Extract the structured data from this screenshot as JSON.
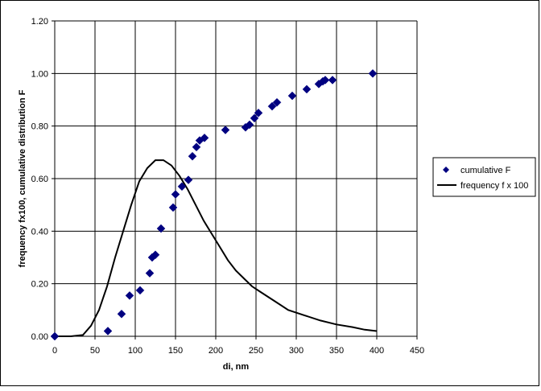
{
  "chart_data": {
    "type": "scatter",
    "title": "",
    "xlabel": "di, nm",
    "ylabel": "frequency fx100, cumulative distribution F",
    "xlim": [
      0,
      450
    ],
    "ylim": [
      0,
      1.2
    ],
    "x_ticks": [
      "0",
      "50",
      "100",
      "150",
      "200",
      "250",
      "300",
      "350",
      "400",
      "450"
    ],
    "y_ticks": [
      "0.00",
      "0.20",
      "0.40",
      "0.60",
      "0.80",
      "1.00",
      "1.20"
    ],
    "x_tick_values": [
      0,
      50,
      100,
      150,
      200,
      250,
      300,
      350,
      400,
      450
    ],
    "y_tick_values": [
      0,
      0.2,
      0.4,
      0.6,
      0.8,
      1.0,
      1.2
    ],
    "grid": true,
    "legend_position": "right",
    "series": [
      {
        "name": "cumulative F",
        "kind": "scatter",
        "marker": "diamond",
        "color": "#000080",
        "points": [
          [
            0,
            0.0
          ],
          [
            66,
            0.02
          ],
          [
            83,
            0.085
          ],
          [
            93,
            0.155
          ],
          [
            106,
            0.175
          ],
          [
            118,
            0.24
          ],
          [
            121,
            0.3
          ],
          [
            125,
            0.31
          ],
          [
            132,
            0.41
          ],
          [
            147,
            0.49
          ],
          [
            150,
            0.54
          ],
          [
            158,
            0.57
          ],
          [
            166,
            0.595
          ],
          [
            171,
            0.685
          ],
          [
            176,
            0.72
          ],
          [
            180,
            0.745
          ],
          [
            186,
            0.755
          ],
          [
            212,
            0.785
          ],
          [
            237,
            0.795
          ],
          [
            242,
            0.805
          ],
          [
            248,
            0.83
          ],
          [
            253,
            0.85
          ],
          [
            270,
            0.875
          ],
          [
            276,
            0.89
          ],
          [
            295,
            0.915
          ],
          [
            313,
            0.94
          ],
          [
            328,
            0.96
          ],
          [
            333,
            0.97
          ],
          [
            336,
            0.975
          ],
          [
            345,
            0.975
          ],
          [
            395,
            1.0
          ]
        ]
      },
      {
        "name": "frequency  f x 100",
        "kind": "line",
        "color": "#000000",
        "points": [
          [
            0,
            0.0
          ],
          [
            20,
            0.0
          ],
          [
            35,
            0.005
          ],
          [
            45,
            0.04
          ],
          [
            55,
            0.1
          ],
          [
            65,
            0.19
          ],
          [
            75,
            0.3
          ],
          [
            85,
            0.4
          ],
          [
            95,
            0.5
          ],
          [
            105,
            0.59
          ],
          [
            115,
            0.64
          ],
          [
            125,
            0.67
          ],
          [
            135,
            0.67
          ],
          [
            145,
            0.65
          ],
          [
            155,
            0.61
          ],
          [
            165,
            0.56
          ],
          [
            175,
            0.5
          ],
          [
            185,
            0.44
          ],
          [
            195,
            0.39
          ],
          [
            205,
            0.34
          ],
          [
            215,
            0.29
          ],
          [
            225,
            0.25
          ],
          [
            235,
            0.22
          ],
          [
            245,
            0.19
          ],
          [
            255,
            0.17
          ],
          [
            265,
            0.15
          ],
          [
            275,
            0.13
          ],
          [
            290,
            0.1
          ],
          [
            310,
            0.08
          ],
          [
            330,
            0.06
          ],
          [
            350,
            0.045
          ],
          [
            370,
            0.035
          ],
          [
            385,
            0.025
          ],
          [
            400,
            0.02
          ]
        ]
      }
    ]
  }
}
